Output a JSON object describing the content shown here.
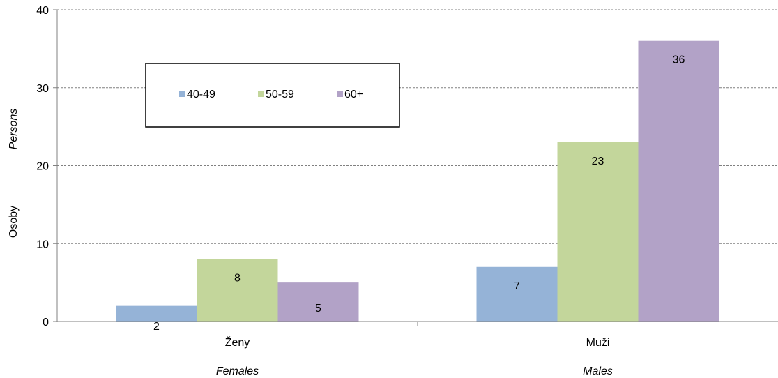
{
  "chart_data": {
    "type": "bar",
    "categories": [
      "Ženy",
      "Muži"
    ],
    "category_sublabels": [
      "Females",
      "Males"
    ],
    "series": [
      {
        "name": "40-49",
        "values": [
          2,
          7
        ],
        "color": "#95b3d7"
      },
      {
        "name": "50-59",
        "values": [
          8,
          23
        ],
        "color": "#c3d69b"
      },
      {
        "name": "60+",
        "values": [
          5,
          36
        ],
        "color": "#b2a2c7"
      }
    ],
    "ylabel": "Osoby",
    "ylabel_secondary": "Persons",
    "ylim": [
      0,
      40
    ],
    "yticks": [
      0,
      10,
      20,
      30,
      40
    ],
    "grid": true,
    "legend_position": "top-left",
    "data_labels": true
  }
}
